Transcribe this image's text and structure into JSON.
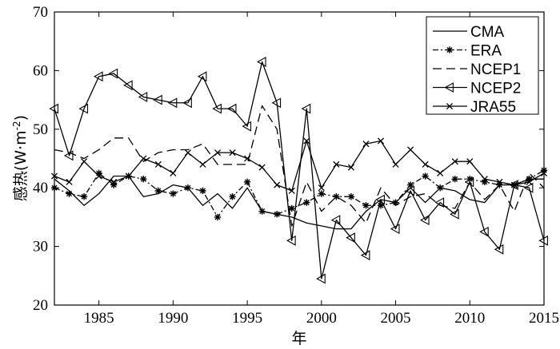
{
  "chart_data": {
    "type": "line",
    "title": "",
    "xlabel": "年",
    "ylabel_main": "感热",
    "ylabel_unit_prefix": "(W·m",
    "ylabel_unit_exp": "-2",
    "ylabel_unit_suffix": ")",
    "xlim": [
      1982,
      2015
    ],
    "ylim": [
      20,
      70
    ],
    "xticks": [
      1985,
      1990,
      1995,
      2000,
      2005,
      2010,
      2015
    ],
    "yticks": [
      20,
      30,
      40,
      50,
      60,
      70
    ],
    "grid": false,
    "legend_position": "top-right",
    "x": [
      1982,
      1983,
      1984,
      1985,
      1986,
      1987,
      1988,
      1989,
      1990,
      1991,
      1992,
      1993,
      1994,
      1995,
      1996,
      1997,
      1998,
      1999,
      2000,
      2001,
      2002,
      2003,
      2004,
      2005,
      2006,
      2007,
      2008,
      2009,
      2010,
      2011,
      2012,
      2013,
      2014,
      2015
    ],
    "series": [
      {
        "name": "CMA",
        "style": "solid",
        "marker": "none",
        "values": [
          41.5,
          39.5,
          37.0,
          39.0,
          42.0,
          42.0,
          38.5,
          39.0,
          40.5,
          40.0,
          37.0,
          39.0,
          36.5,
          40.0,
          36.0,
          35.5,
          35.0,
          34.0,
          33.5,
          33.0,
          33.0,
          36.0,
          38.0,
          37.5,
          40.0,
          37.5,
          40.0,
          39.5,
          38.0,
          37.5,
          40.5,
          40.5,
          41.5,
          41.5
        ]
      },
      {
        "name": "ERA",
        "style": "dashdot",
        "marker": "star",
        "values": [
          40.0,
          39.0,
          38.5,
          42.5,
          40.5,
          42.0,
          41.5,
          39.5,
          39.0,
          40.0,
          39.5,
          35.0,
          38.5,
          41.0,
          36.0,
          35.5,
          36.5,
          37.5,
          39.0,
          38.5,
          38.5,
          37.0,
          37.0,
          37.5,
          40.5,
          42.0,
          40.0,
          41.5,
          41.5,
          41.0,
          40.5,
          40.5,
          41.5,
          43.0
        ]
      },
      {
        "name": "NCEP1",
        "style": "dashed",
        "marker": "none",
        "values": [
          46.5,
          46.0,
          45.0,
          46.5,
          48.5,
          48.5,
          44.5,
          46.0,
          46.5,
          46.5,
          47.5,
          44.0,
          44.0,
          44.0,
          54.0,
          50.0,
          33.5,
          41.0,
          36.0,
          38.5,
          37.0,
          34.0,
          40.0,
          37.0,
          38.5,
          39.0,
          37.0,
          36.5,
          41.0,
          38.0,
          40.5,
          36.0,
          42.5,
          40.0
        ]
      },
      {
        "name": "NCEP2",
        "style": "solid",
        "marker": "triangle-left",
        "values": [
          53.5,
          45.5,
          53.5,
          59.0,
          59.5,
          57.5,
          55.5,
          55.0,
          54.5,
          54.5,
          59.0,
          53.5,
          53.5,
          50.5,
          61.5,
          54.5,
          31.0,
          53.5,
          24.5,
          34.5,
          31.5,
          28.5,
          38.0,
          33.0,
          39.5,
          34.5,
          37.5,
          35.5,
          41.0,
          32.5,
          29.5,
          40.5,
          40.0,
          31.0
        ]
      },
      {
        "name": "JRA55",
        "style": "solid",
        "marker": "x",
        "values": [
          42.0,
          41.0,
          44.5,
          42.0,
          41.0,
          42.0,
          45.0,
          44.0,
          42.5,
          46.0,
          44.0,
          46.0,
          46.0,
          45.0,
          43.5,
          40.5,
          39.5,
          48.0,
          40.0,
          44.0,
          43.5,
          47.5,
          48.0,
          44.0,
          46.5,
          44.0,
          42.5,
          44.5,
          44.5,
          41.5,
          41.0,
          40.5,
          41.0,
          42.5
        ]
      }
    ]
  }
}
